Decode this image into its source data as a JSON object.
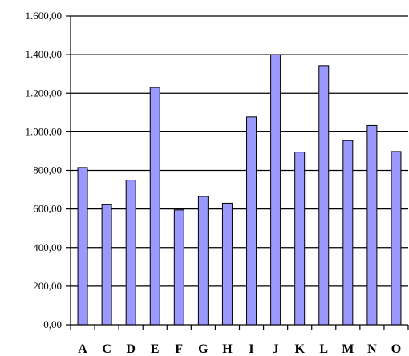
{
  "chart_data": {
    "type": "bar",
    "categories": [
      "A",
      "C",
      "D",
      "E",
      "F",
      "G",
      "H",
      "I",
      "J",
      "K",
      "L",
      "M",
      "N",
      "O"
    ],
    "values": [
      815,
      622,
      750,
      1230,
      595,
      665,
      630,
      1077,
      1400,
      895,
      1343,
      955,
      1033,
      898
    ],
    "ylim": [
      0,
      1600
    ],
    "yticks": [
      0,
      200,
      400,
      600,
      800,
      1000,
      1200,
      1400,
      1600
    ],
    "ytick_labels": [
      "0,00",
      "200,00",
      "400,00",
      "600,00",
      "800,00",
      "1.000,00",
      "1.200,00",
      "1.400,00",
      "1.600,00"
    ],
    "grid": true,
    "legend": "none",
    "bar_color": "#9999ff",
    "bar_edge_color": "#000000"
  }
}
